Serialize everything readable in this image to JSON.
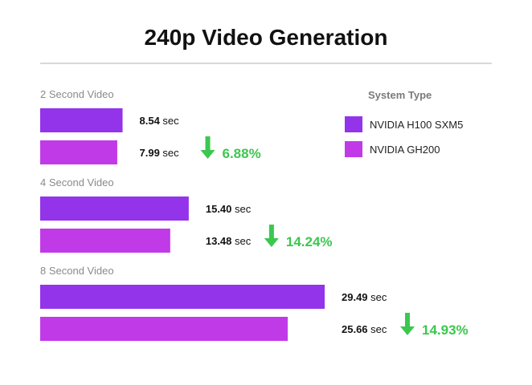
{
  "chart_data": {
    "type": "bar",
    "orientation": "horizontal",
    "title": "240p Video Generation",
    "categories": [
      "2 Second Video",
      "4 Second Video",
      "8 Second Video"
    ],
    "series": [
      {
        "name": "NVIDIA H100 SXM5",
        "values": [
          8.54,
          15.4,
          29.49
        ],
        "color": "#9333ea"
      },
      {
        "name": "NVIDIA GH200",
        "values": [
          7.99,
          13.48,
          25.66
        ],
        "color": "#c03ae8"
      }
    ],
    "value_labels": [
      [
        "8.54",
        "15.40",
        "29.49"
      ],
      [
        "7.99",
        "13.48",
        "25.66"
      ]
    ],
    "unit": "sec",
    "improvements": [
      "6.88%",
      "14.24%",
      "14.93%"
    ],
    "improvement_color": "#3cc74f",
    "legend": {
      "title": "System Type",
      "placement": "top-right"
    },
    "grid": false,
    "xlim": [
      0,
      35
    ]
  },
  "colors": {
    "title": "#111111",
    "category_label": "#8a8a8a",
    "legend_title": "#7a7a7a",
    "legend_text": "#222222",
    "value_text": "#111111",
    "divider": "#cccccc"
  }
}
